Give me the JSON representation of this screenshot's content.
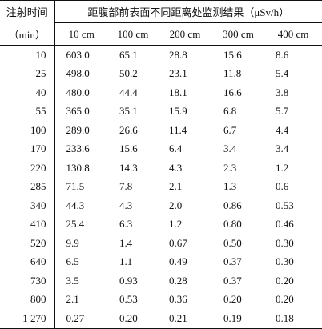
{
  "table": {
    "header": {
      "time_label": "注射时间",
      "time_unit": "（min）",
      "group_label": "距腹部前表面不同距离处监测结果（μSv/h）",
      "distances": [
        "10 cm",
        "100 cm",
        "200 cm",
        "300 cm",
        "400 cm"
      ]
    },
    "rows": [
      [
        "10",
        "603.0",
        "65.1",
        "28.8",
        "15.6",
        "8.6"
      ],
      [
        "25",
        "498.0",
        "50.2",
        "23.1",
        "11.8",
        "5.4"
      ],
      [
        "40",
        "480.0",
        "44.4",
        "18.1",
        "16.6",
        "3.8"
      ],
      [
        "55",
        "365.0",
        "35.1",
        "15.9",
        "6.8",
        "5.7"
      ],
      [
        "100",
        "289.0",
        "26.6",
        "11.4",
        "6.7",
        "4.4"
      ],
      [
        "170",
        "233.6",
        "15.6",
        "6.4",
        "3.4",
        "3.4"
      ],
      [
        "220",
        "130.8",
        "14.3",
        "4.3",
        "2.3",
        "1.2"
      ],
      [
        "285",
        "71.5",
        "7.8",
        "2.1",
        "1.3",
        "0.6"
      ],
      [
        "340",
        "44.3",
        "4.3",
        "2.0",
        "0.86",
        "0.53"
      ],
      [
        "410",
        "25.4",
        "6.3",
        "1.2",
        "0.80",
        "0.46"
      ],
      [
        "520",
        "9.9",
        "1.4",
        "0.67",
        "0.50",
        "0.30"
      ],
      [
        "640",
        "6.5",
        "1.1",
        "0.49",
        "0.37",
        "0.30"
      ],
      [
        "730",
        "3.5",
        "0.93",
        "0.28",
        "0.37",
        "0.20"
      ],
      [
        "800",
        "2.1",
        "0.53",
        "0.36",
        "0.20",
        "0.20"
      ],
      [
        "1 270",
        "0.27",
        "0.20",
        "0.21",
        "0.19",
        "0.18"
      ]
    ]
  }
}
